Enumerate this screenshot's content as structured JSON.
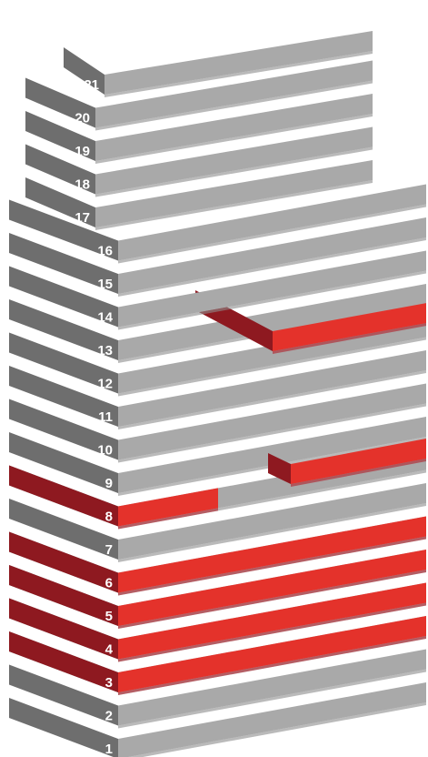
{
  "colors": {
    "side_gray": "#6e6e6e",
    "top_gray": "#a9a9a9",
    "front_gray": "#8c8c8c",
    "side_red": "#8e1920",
    "top_red": "#e4322b",
    "front_red": "#b3202a"
  },
  "floors": [
    {
      "label": "1",
      "highlighted": false
    },
    {
      "label": "2",
      "highlighted": false
    },
    {
      "label": "3",
      "highlighted": true
    },
    {
      "label": "4",
      "highlighted": true
    },
    {
      "label": "5",
      "highlighted": true
    },
    {
      "label": "6",
      "highlighted": true
    },
    {
      "label": "7",
      "highlighted": false
    },
    {
      "label": "8",
      "highlighted": true
    },
    {
      "label": "9",
      "highlighted": false
    },
    {
      "label": "10",
      "highlighted": false
    },
    {
      "label": "11",
      "highlighted": false
    },
    {
      "label": "12",
      "highlighted": false
    },
    {
      "label": "13",
      "highlighted": true
    },
    {
      "label": "14",
      "highlighted": false
    },
    {
      "label": "15",
      "highlighted": false
    },
    {
      "label": "16",
      "highlighted": false
    },
    {
      "label": "17",
      "highlighted": false
    },
    {
      "label": "18",
      "highlighted": false
    },
    {
      "label": "19",
      "highlighted": false
    },
    {
      "label": "20",
      "highlighted": false
    },
    {
      "label": "21",
      "highlighted": false
    }
  ]
}
